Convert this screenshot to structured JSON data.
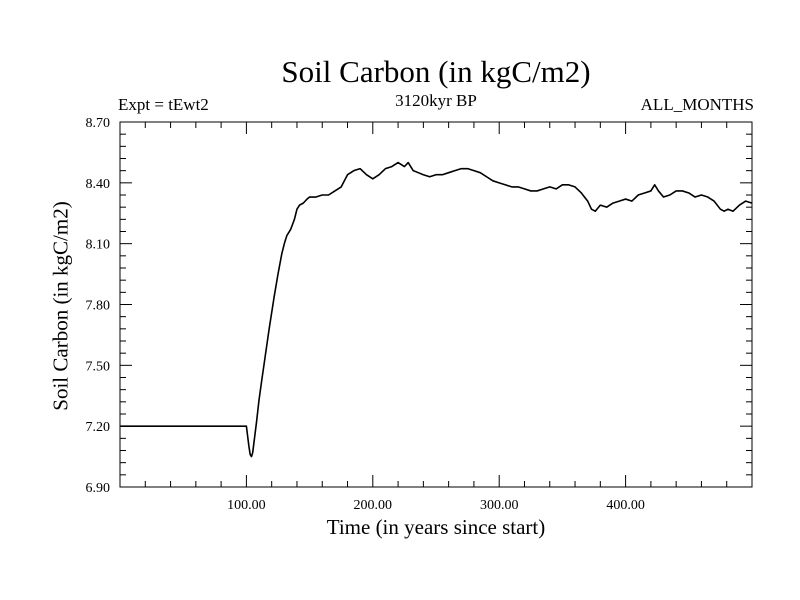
{
  "chart_data": {
    "type": "line",
    "title": "Soil Carbon (in kgC/m2)",
    "subtitle": "3120kyr BP",
    "left_note": "Expt = tEwt2",
    "right_note": "ALL_MONTHS",
    "xlabel": "Time (in years since start)",
    "ylabel": "Soil Carbon (in kgC/m2)",
    "xlim": [
      0,
      500
    ],
    "ylim": [
      6.9,
      8.7
    ],
    "x_ticks": [
      100,
      200,
      300,
      400
    ],
    "x_tick_labels": [
      "100.00",
      "200.00",
      "300.00",
      "400.00"
    ],
    "y_ticks": [
      6.9,
      7.2,
      7.5,
      7.8,
      8.1,
      8.4,
      8.7
    ],
    "y_tick_labels": [
      "6.90",
      "7.20",
      "7.50",
      "7.80",
      "8.10",
      "8.40",
      "8.70"
    ],
    "series": [
      {
        "name": "Soil Carbon",
        "color": "#000000",
        "x": [
          0,
          100,
          101,
          102,
          103,
          104,
          105,
          106,
          108,
          110,
          112,
          115,
          118,
          120,
          122,
          125,
          128,
          130,
          132,
          135,
          138,
          140,
          142,
          145,
          148,
          150,
          155,
          160,
          165,
          170,
          175,
          180,
          185,
          190,
          195,
          200,
          205,
          210,
          215,
          220,
          225,
          228,
          232,
          236,
          240,
          245,
          250,
          255,
          260,
          265,
          270,
          275,
          280,
          285,
          290,
          295,
          300,
          305,
          310,
          315,
          320,
          325,
          330,
          335,
          340,
          345,
          350,
          355,
          360,
          365,
          370,
          373,
          376,
          380,
          385,
          390,
          395,
          400,
          405,
          410,
          415,
          420,
          423,
          426,
          430,
          435,
          440,
          445,
          450,
          455,
          460,
          465,
          470,
          475,
          478,
          481,
          485,
          490,
          495,
          500
        ],
        "values": [
          7.2,
          7.2,
          7.15,
          7.1,
          7.06,
          7.05,
          7.07,
          7.12,
          7.22,
          7.33,
          7.42,
          7.55,
          7.68,
          7.76,
          7.84,
          7.95,
          8.05,
          8.1,
          8.14,
          8.17,
          8.22,
          8.27,
          8.29,
          8.3,
          8.32,
          8.33,
          8.33,
          8.34,
          8.34,
          8.36,
          8.38,
          8.44,
          8.46,
          8.47,
          8.44,
          8.42,
          8.44,
          8.47,
          8.48,
          8.5,
          8.48,
          8.5,
          8.46,
          8.45,
          8.44,
          8.43,
          8.44,
          8.44,
          8.45,
          8.46,
          8.47,
          8.47,
          8.46,
          8.45,
          8.43,
          8.41,
          8.4,
          8.39,
          8.38,
          8.38,
          8.37,
          8.36,
          8.36,
          8.37,
          8.38,
          8.37,
          8.39,
          8.39,
          8.38,
          8.35,
          8.31,
          8.27,
          8.26,
          8.29,
          8.28,
          8.3,
          8.31,
          8.32,
          8.31,
          8.34,
          8.35,
          8.36,
          8.39,
          8.36,
          8.33,
          8.34,
          8.36,
          8.36,
          8.35,
          8.33,
          8.34,
          8.33,
          8.31,
          8.27,
          8.26,
          8.27,
          8.26,
          8.29,
          8.31,
          8.3
        ]
      }
    ]
  }
}
